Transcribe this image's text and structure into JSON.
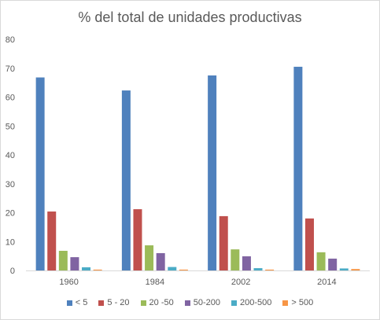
{
  "chart_data": {
    "type": "bar",
    "title": "% del total de unidades productivas",
    "xlabel": "",
    "ylabel": "",
    "ylim": [
      0,
      80
    ],
    "yticks": [
      0,
      10,
      20,
      30,
      40,
      50,
      60,
      70,
      80
    ],
    "grid": false,
    "legend_position": "bottom",
    "categories": [
      "1960",
      "1984",
      "2002",
      "2014"
    ],
    "series": [
      {
        "name": "< 5",
        "color": "#4f81bd",
        "values": [
          66.8,
          62.3,
          67.5,
          70.5
        ]
      },
      {
        "name": "5 - 20",
        "color": "#c0504d",
        "values": [
          20.4,
          21.2,
          18.8,
          18.0
        ]
      },
      {
        "name": "20 -50",
        "color": "#9bbb59",
        "values": [
          6.8,
          8.7,
          7.3,
          6.3
        ]
      },
      {
        "name": "50-200",
        "color": "#8064a2",
        "values": [
          4.6,
          6.0,
          4.9,
          4.1
        ]
      },
      {
        "name": "200-500",
        "color": "#4bacc6",
        "values": [
          1.1,
          1.2,
          0.8,
          0.7
        ]
      },
      {
        "name": "> 500",
        "color": "#f79646",
        "values": [
          0.3,
          0.3,
          0.3,
          0.5
        ]
      }
    ]
  }
}
